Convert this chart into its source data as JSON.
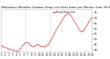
{
  "title": "Milwaukee Weather Outdoor Temp (vs) Heat Index per Minute (Last 24 Hours)",
  "bg_color": "#ffffff",
  "line_color": "#cc0000",
  "legend_color": "#cc0000",
  "ylim": [
    38,
    78
  ],
  "yticks": [
    40,
    45,
    50,
    55,
    60,
    65,
    70,
    75
  ],
  "vlines": [
    0.27,
    0.54
  ],
  "vline_color": "#999999",
  "temp_data": [
    44,
    44,
    43,
    43,
    43,
    42,
    42,
    42,
    42,
    42,
    41,
    41,
    41,
    41,
    40,
    40,
    40,
    40,
    40,
    40,
    39,
    39,
    39,
    39,
    39,
    39,
    38,
    38,
    39,
    40,
    41,
    41,
    42,
    44,
    44,
    44,
    45,
    46,
    46,
    47,
    47,
    47,
    47,
    46,
    46,
    45,
    44,
    44,
    44,
    43,
    43,
    43,
    43,
    43,
    44,
    44,
    44,
    45,
    45,
    45,
    44,
    44,
    44,
    43,
    43,
    43,
    43,
    43,
    43,
    43,
    43,
    43,
    44,
    44,
    45,
    45,
    46,
    47,
    48,
    49,
    50,
    51,
    52,
    54,
    55,
    56,
    57,
    58,
    59,
    60,
    61,
    62,
    63,
    64,
    65,
    66,
    67,
    68,
    69,
    70,
    71,
    72,
    72,
    73,
    73,
    74,
    74,
    74,
    74,
    74,
    73,
    72,
    71,
    70,
    69,
    68,
    67,
    66,
    65,
    64,
    63,
    62,
    61,
    60,
    59,
    58,
    58,
    57,
    57,
    57,
    58,
    58,
    59,
    60,
    61,
    62,
    63,
    64,
    65,
    66,
    67,
    68,
    69,
    70,
    70,
    70
  ],
  "title_fontsize": 3.2,
  "tick_fontsize": 2.8,
  "legend_label": "Temp/Heat Idx",
  "legend_fontsize": 2.8
}
